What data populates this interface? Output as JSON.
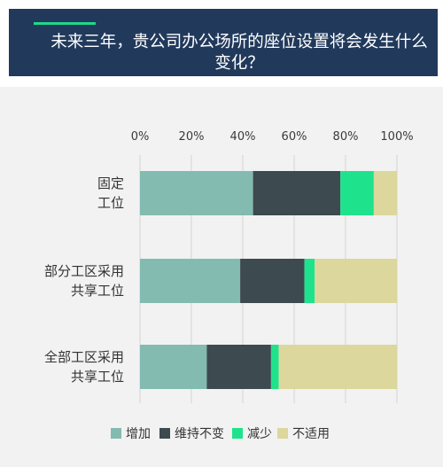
{
  "chart_data": {
    "type": "bar",
    "orientation": "horizontal",
    "stacked": true,
    "title": "未来三年，贵公司办公场所的座位设置将会发生什么变化？",
    "categories": [
      "固定\n工位",
      "部分工区采用\n共享工位",
      "全部工区采用\n共享工位"
    ],
    "series": [
      {
        "name": "增加",
        "color": "#83bbb0",
        "values": [
          44,
          39,
          26
        ]
      },
      {
        "name": "维持不变",
        "color": "#3d4a4f",
        "values": [
          34,
          25,
          25
        ]
      },
      {
        "name": "减少",
        "color": "#1fe38c",
        "values": [
          13,
          4,
          3
        ]
      },
      {
        "name": "不适用",
        "color": "#dcd79c",
        "values": [
          9,
          32,
          46
        ]
      }
    ],
    "xlim": [
      0,
      100
    ],
    "xticks": [
      "0%",
      "20%",
      "40%",
      "60%",
      "80%",
      "100%"
    ],
    "grid": true,
    "legend_position": "bottom"
  }
}
